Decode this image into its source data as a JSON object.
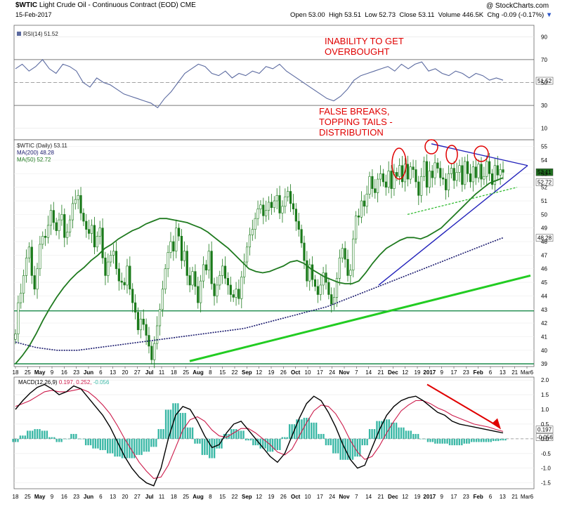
{
  "header": {
    "symbol": "$WTIC",
    "name": "Light Crude Oil - Continuous Contract (EOD) CME",
    "date": "15-Feb-2017",
    "brand": "@ StockCharts.com",
    "open_label": "Open",
    "open": "53.00",
    "high_label": "High",
    "high": "53.51",
    "low_label": "Low",
    "low": "52.73",
    "close_label": "Close",
    "close": "53.11",
    "volume_label": "Volume",
    "volume": "446.5K",
    "chg_label": "Chg",
    "chg": "-0.09 (-0.17%)"
  },
  "annotations": {
    "rsi_note_1": "INABILITY TO GET",
    "rsi_note_2": "OVERBOUGHT",
    "price_note_1": "FALSE BREAKS,",
    "price_note_2": "TOPPING TAILS -",
    "price_note_3": "DISTRIBUTION"
  },
  "colors": {
    "price": "#1a7a1a",
    "ma50": "#1f7a1f",
    "ma200": "#1a1a6e",
    "rsi": "#5b6aa0",
    "annotation": "#e00000",
    "trendline_blue": "#2222bb",
    "trendline_green": "#22cc22",
    "macd_hist": "#3bb8a6"
  },
  "chart_data": [
    {
      "type": "line",
      "panel": "rsi",
      "legend": "RSI(14) 51.52",
      "ylim": [
        0,
        100
      ],
      "yticks": [
        "90",
        "70",
        "50",
        "30",
        "10"
      ],
      "levels": [
        70,
        30
      ],
      "last_value_label": "51.52",
      "last_value": 51.52,
      "values": [
        62,
        66,
        60,
        64,
        70,
        62,
        58,
        66,
        64,
        60,
        50,
        46,
        54,
        50,
        48,
        44,
        40,
        38,
        36,
        34,
        32,
        28,
        36,
        42,
        50,
        58,
        62,
        66,
        64,
        58,
        56,
        60,
        54,
        58,
        56,
        60,
        58,
        64,
        62,
        66,
        60,
        56,
        52,
        48,
        44,
        40,
        36,
        34,
        38,
        44,
        52,
        56,
        58,
        60,
        62,
        64,
        60,
        66,
        62,
        66,
        68,
        60,
        62,
        58,
        56,
        60,
        58,
        54,
        58,
        56,
        52,
        54,
        52
      ]
    },
    {
      "type": "candlestick",
      "panel": "price",
      "legend_symbol": "$WTIC (Daily) 53.11",
      "legend_ma200": "MA(200) 48.28",
      "legend_ma50": "MA(50) 52.72",
      "ylim": [
        38.8,
        55.5
      ],
      "yticks": [
        "55",
        "54",
        "53",
        "52",
        "51",
        "50",
        "49",
        "48",
        "47",
        "46",
        "45",
        "44",
        "43",
        "42",
        "41",
        "40",
        "39"
      ],
      "last_close_label": "53.11",
      "last_close": 53.11,
      "last_ma50_label": "52.72",
      "last_ma50": 52.72,
      "last_ma200_label": "48.28",
      "last_ma200": 48.28,
      "closes": [
        41.2,
        43.5,
        44.2,
        45.5,
        46.8,
        47.6,
        45.5,
        44.5,
        46.0,
        47.8,
        48.4,
        48.3,
        49.2,
        50.3,
        49.4,
        48.8,
        49.6,
        50.0,
        48.3,
        48.7,
        49.6,
        50.8,
        51.1,
        51.4,
        50.1,
        49.5,
        48.9,
        48.6,
        49.2,
        47.6,
        48.4,
        49.0,
        46.8,
        45.5,
        46.5,
        47.0,
        47.3,
        46.0,
        45.1,
        45.0,
        44.8,
        46.2,
        44.5,
        43.5,
        42.8,
        41.5,
        42.3,
        41.9,
        41.1,
        40.3,
        39.3,
        40.5,
        41.8,
        43.0,
        44.5,
        46.0,
        47.2,
        48.0,
        47.3,
        49.0,
        48.4,
        46.6,
        47.3,
        45.5,
        44.8,
        45.8,
        44.7,
        43.5,
        45.1,
        46.3,
        45.9,
        47.3,
        44.9,
        44.0,
        44.8,
        45.5,
        46.2,
        45.3,
        44.8,
        44.1,
        43.9,
        44.5,
        43.8,
        45.4,
        46.5,
        47.6,
        48.5,
        48.9,
        49.7,
        50.4,
        50.7,
        49.9,
        50.3,
        50.9,
        50.5,
        51.0,
        51.4,
        50.1,
        50.6,
        51.3,
        51.7,
        50.8,
        50.4,
        49.5,
        48.9,
        47.9,
        46.6,
        45.1,
        46.3,
        45.2,
        44.7,
        44.1,
        44.8,
        45.7,
        45.0,
        44.1,
        43.4,
        43.9,
        45.3,
        46.8,
        47.5,
        46.7,
        45.5,
        45.9,
        48.2,
        49.9,
        49.8,
        51.0,
        50.6,
        51.5,
        52.8,
        51.9,
        51.6,
        52.6,
        53.0,
        52.4,
        52.0,
        53.2,
        51.9,
        53.1,
        52.8,
        53.6,
        52.4,
        53.7,
        52.6,
        53.5,
        53.3,
        52.4,
        51.4,
        52.8,
        53.9,
        52.0,
        53.2,
        52.7,
        53.8,
        53.4,
        52.7,
        52.6,
        51.8,
        53.0,
        53.4,
        52.5,
        53.1,
        53.6,
        52.2,
        53.9,
        53.0,
        52.4,
        53.5,
        52.7,
        53.7,
        52.6,
        52.8,
        53.9,
        53.0,
        52.2,
        53.6,
        52.9,
        53.3,
        53.1
      ],
      "ma50": [
        39.0,
        39.6,
        40.3,
        41.2,
        42.2,
        43.1,
        43.9,
        44.6,
        45.2,
        45.7,
        46.1,
        46.6,
        47.0,
        47.5,
        47.8,
        48.2,
        48.5,
        48.8,
        49.0,
        49.3,
        49.5,
        49.7,
        49.7,
        49.6,
        49.5,
        49.4,
        49.2,
        49.0,
        48.7,
        48.3,
        47.9,
        47.5,
        47.0,
        46.5,
        46.0,
        45.8,
        45.7,
        45.8,
        46.0,
        46.2,
        46.5,
        46.6,
        46.4,
        46.0,
        45.7,
        45.4,
        45.2,
        45.0,
        44.9,
        44.9,
        45.1,
        45.7,
        46.4,
        47.0,
        47.5,
        47.8,
        48.1,
        48.3,
        48.3,
        48.2,
        48.4,
        48.7,
        49.0,
        49.5,
        50.0,
        50.5,
        51.0,
        51.5,
        51.9,
        52.3,
        52.5,
        52.7
      ],
      "ma200": [
        40.6,
        40.4,
        40.2,
        40.1,
        40.0,
        40.0,
        40.0,
        40.1,
        40.2,
        40.3,
        40.4,
        40.5,
        40.6,
        40.7,
        40.8,
        40.9,
        41.0,
        41.1,
        41.2,
        41.3,
        41.4,
        41.5,
        41.6,
        41.8,
        42.0,
        42.2,
        42.4,
        42.6,
        42.8,
        43.0,
        43.2,
        43.5,
        43.8,
        44.1,
        44.4,
        44.7,
        45.0,
        45.3,
        45.6,
        45.9,
        46.2,
        46.5,
        46.8,
        47.1,
        47.4,
        47.7,
        48.0,
        48.28
      ],
      "trendlines": [
        {
          "name": "support-green",
          "from_value": 39.2,
          "to_value": 45.5
        },
        {
          "name": "rising-blue",
          "from_value": 44.8,
          "to_value": 53.6
        },
        {
          "name": "falling-blue",
          "from_value": 55.2,
          "to_value": 53.6
        },
        {
          "name": "rising-dashed",
          "from_value": 50.0,
          "to_value": 52.0
        }
      ],
      "horizontal_lines": [
        42.9,
        39.0
      ]
    },
    {
      "type": "line",
      "panel": "macd",
      "legend": "MACD(12,26,9) 0.197, 0.252, -0.056",
      "legend_macd": "MACD(12,26,9)",
      "legend_values": "0.197, 0.252,",
      "legend_hist": "-0.056",
      "ylim": [
        -1.7,
        2.1
      ],
      "yticks": [
        "2.0",
        "1.5",
        "1.0",
        "0.5",
        "0.0",
        "-0.5",
        "-1.0",
        "-1.5"
      ],
      "last_macd_label": "0.197",
      "last_macd": 0.197,
      "last_hist_label": "-0.056",
      "last_hist": -0.056,
      "macd": [
        1.0,
        1.3,
        1.55,
        1.75,
        1.85,
        1.7,
        1.5,
        1.6,
        1.8,
        1.7,
        1.4,
        1.1,
        0.8,
        0.4,
        -0.1,
        -0.6,
        -1.0,
        -1.3,
        -1.5,
        -1.6,
        -1.0,
        0.0,
        0.8,
        1.1,
        1.0,
        0.6,
        0.1,
        -0.3,
        -0.2,
        0.2,
        0.5,
        0.6,
        0.3,
        0.0,
        -0.3,
        -0.6,
        -0.8,
        -0.5,
        0.1,
        0.7,
        1.2,
        1.45,
        1.3,
        0.9,
        0.4,
        -0.2,
        -0.7,
        -1.0,
        -0.9,
        -0.3,
        0.3,
        0.8,
        1.1,
        1.3,
        1.4,
        1.45,
        1.3,
        1.1,
        0.9,
        0.8,
        0.6,
        0.5,
        0.45,
        0.4,
        0.35,
        0.3,
        0.25,
        0.2
      ],
      "signal": [
        1.1,
        1.2,
        1.3,
        1.45,
        1.6,
        1.65,
        1.6,
        1.6,
        1.65,
        1.7,
        1.6,
        1.4,
        1.15,
        0.85,
        0.45,
        0.0,
        -0.4,
        -0.8,
        -1.1,
        -1.35,
        -1.3,
        -0.9,
        -0.3,
        0.3,
        0.65,
        0.75,
        0.6,
        0.3,
        0.1,
        0.05,
        0.2,
        0.35,
        0.35,
        0.2,
        0.0,
        -0.2,
        -0.45,
        -0.55,
        -0.35,
        0.1,
        0.55,
        0.95,
        1.15,
        1.1,
        0.85,
        0.45,
        -0.05,
        -0.45,
        -0.7,
        -0.6,
        -0.25,
        0.2,
        0.6,
        0.95,
        1.15,
        1.3,
        1.3,
        1.2,
        1.05,
        0.95,
        0.8,
        0.7,
        0.6,
        0.5,
        0.45,
        0.4,
        0.32,
        0.25
      ]
    }
  ],
  "x_axis": {
    "labels": [
      "18",
      "25",
      "May",
      "9",
      "16",
      "23",
      "Jun",
      "6",
      "13",
      "20",
      "27",
      "Jul",
      "11",
      "18",
      "25",
      "Aug",
      "8",
      "15",
      "22",
      "Sep",
      "12",
      "19",
      "26",
      "Oct",
      "10",
      "17",
      "24",
      "Nov",
      "7",
      "14",
      "21",
      "Dec",
      "12",
      "19",
      "2017",
      "9",
      "17",
      "23",
      "Feb",
      "6",
      "13",
      "21",
      "Mar6"
    ],
    "bold": [
      "May",
      "Jun",
      "Jul",
      "Aug",
      "Sep",
      "Oct",
      "Nov",
      "Dec",
      "2017",
      "Feb"
    ]
  }
}
